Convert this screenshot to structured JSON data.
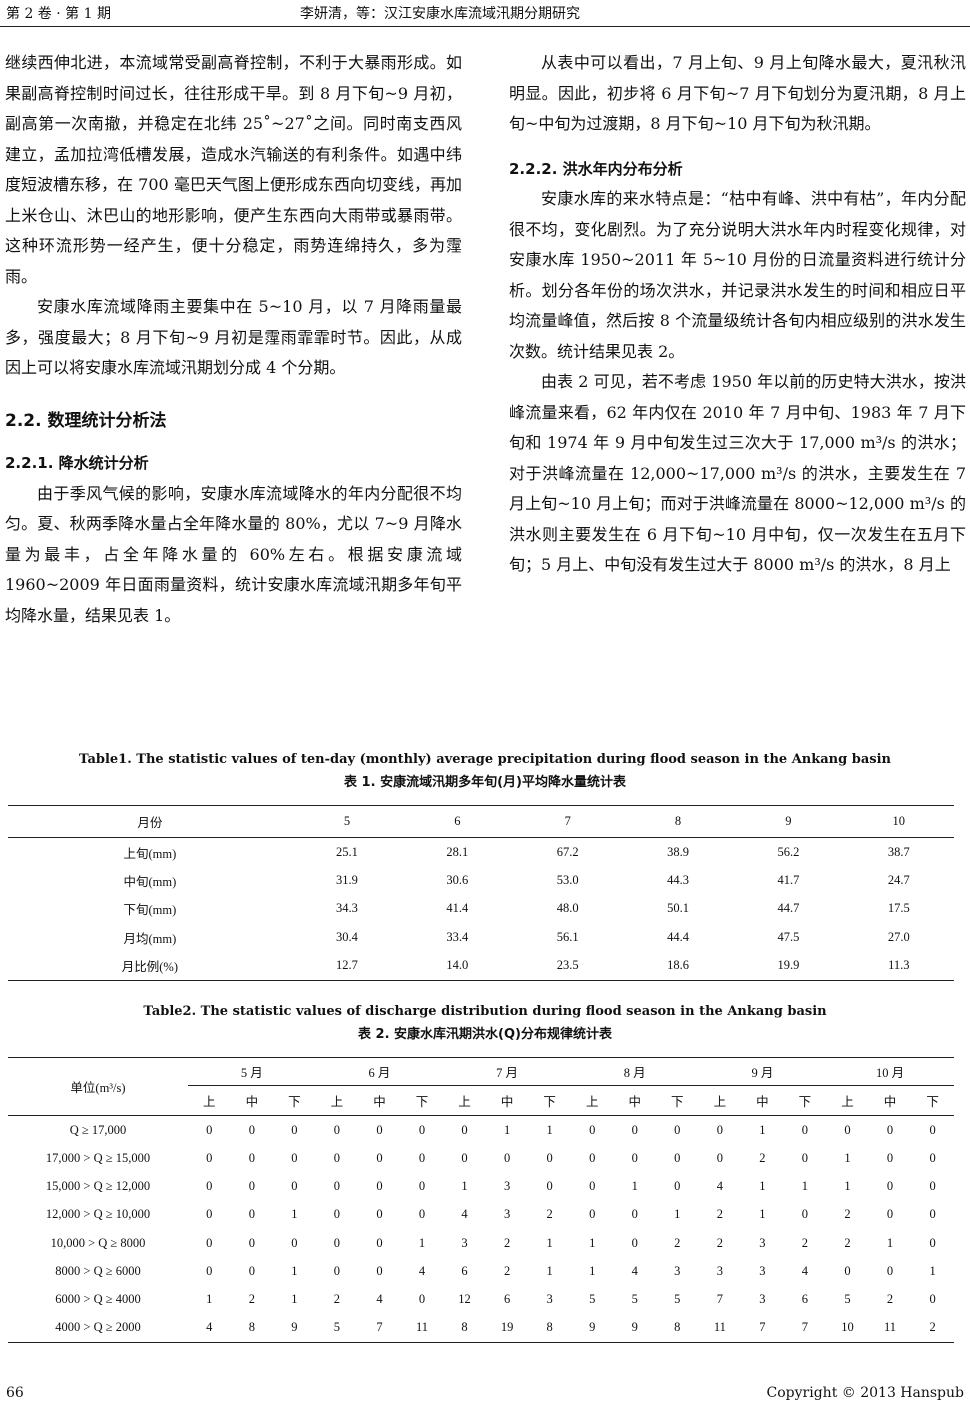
{
  "header": {
    "volume": "第 2 卷 · 第 1 期",
    "running_title": "李妍清，等：汉江安康水库流域汛期分期研究"
  },
  "left_column": {
    "p1": "继续西伸北进，本流域常受副高脊控制，不利于大暴雨形成。如果副高脊控制时间过长，往往形成干旱。到 8 月下旬~9 月初，副高第一次南撤，并稳定在北纬 25˚~27˚之间。同时南支西风建立，孟加拉湾低槽发展，造成水汽输送的有利条件。如遇中纬度短波槽东移，在 700 毫巴天气图上便形成东西向切变线，再加上米仓山、沐巴山的地形影响，便产生东西向大雨带或暴雨带。这种环流形势一经产生，便十分稳定，雨势连绵持久，多为霪雨。",
    "p2": "安康水库流域降雨主要集中在 5~10 月，以 7 月降雨量最多，强度最大；8 月下旬~9 月初是霪雨霏霏时节。因此，从成因上可以将安康水库流域汛期划分成 4 个分期。",
    "h2": "2.2.  数理统计分析法",
    "h3": "2.2.1.  降水统计分析",
    "p3": "由于季风气候的影响，安康水库流域降水的年内分配很不均匀。夏、秋两季降水量占全年降水量的 80%，尤以 7~9 月降水量为最丰，占全年降水量的 60%左右。根据安康流域 1960~2009 年日面雨量资料，统计安康水库流域汛期多年旬平均降水量，结果见表 1。"
  },
  "right_column": {
    "p1": "从表中可以看出，7 月上旬、9 月上旬降水最大，夏汛秋汛明显。因此，初步将 6 月下旬~7 月下旬划分为夏汛期，8 月上旬~中旬为过渡期，8 月下旬~10 月下旬为秋汛期。",
    "h3": "2.2.2.  洪水年内分布分析",
    "p2": "安康水库的来水特点是：“枯中有峰、洪中有枯”，年内分配很不均，变化剧烈。为了充分说明大洪水年内时程变化规律，对安康水库 1950~2011 年 5~10 月份的日流量资料进行统计分析。划分各年份的场次洪水，并记录洪水发生的时间和相应日平均流量峰值，然后按 8 个流量级统计各旬内相应级别的洪水发生次数。统计结果见表 2。",
    "p3": "由表 2 可见，若不考虑 1950 年以前的历史特大洪水，按洪峰流量来看，62 年内仅在 2010 年 7 月中旬、1983 年 7 月下旬和 1974 年 9 月中旬发生过三次大于 17,000 m³/s 的洪水；对于洪峰流量在 12,000~17,000 m³/s 的洪水，主要发生在 7 月上旬~10 月上旬；而对于洪峰流量在 8000~12,000 m³/s 的洪水则主要发生在 6 月下旬~10 月中旬，仅一次发生在五月下旬；5 月上、中旬没有发生过大于 8000 m³/s 的洪水，8 月上"
  },
  "table1": {
    "caption_en": "Table1. The statistic values of ten-day (monthly) average precipitation during flood season in the Ankang basin",
    "caption_cn": "表 1.  安康流域汛期多年旬(月)平均降水量统计表",
    "headers": [
      "月份",
      "5",
      "6",
      "7",
      "8",
      "9",
      "10"
    ],
    "rows": [
      [
        "上旬(mm)",
        "25.1",
        "28.1",
        "67.2",
        "38.9",
        "56.2",
        "38.7"
      ],
      [
        "中旬(mm)",
        "31.9",
        "30.6",
        "53.0",
        "44.3",
        "41.7",
        "24.7"
      ],
      [
        "下旬(mm)",
        "34.3",
        "41.4",
        "48.0",
        "50.1",
        "44.7",
        "17.5"
      ],
      [
        "月均(mm)",
        "30.4",
        "33.4",
        "56.1",
        "44.4",
        "47.5",
        "27.0"
      ],
      [
        "月比例(%)",
        "12.7",
        "14.0",
        "23.5",
        "18.6",
        "19.9",
        "11.3"
      ]
    ]
  },
  "table2": {
    "caption_en": "Table2. The statistic values of discharge distribution during flood season in the Ankang basin",
    "caption_cn": "表 2.  安康水库汛期洪水(Q)分布规律统计表",
    "unit": "单位(m³/s)",
    "months": [
      "5 月",
      "6 月",
      "7 月",
      "8 月",
      "9 月",
      "10 月"
    ],
    "subheaders": [
      "上",
      "中",
      "下"
    ],
    "rows": [
      {
        "label": "Q ≥ 17,000",
        "values": [
          "0",
          "0",
          "0",
          "0",
          "0",
          "0",
          "0",
          "1",
          "1",
          "0",
          "0",
          "0",
          "0",
          "1",
          "0",
          "0",
          "0",
          "0"
        ]
      },
      {
        "label": "17,000 > Q ≥ 15,000",
        "values": [
          "0",
          "0",
          "0",
          "0",
          "0",
          "0",
          "0",
          "0",
          "0",
          "0",
          "0",
          "0",
          "0",
          "2",
          "0",
          "1",
          "0",
          "0"
        ]
      },
      {
        "label": "15,000 > Q ≥ 12,000",
        "values": [
          "0",
          "0",
          "0",
          "0",
          "0",
          "0",
          "1",
          "3",
          "0",
          "0",
          "1",
          "0",
          "4",
          "1",
          "1",
          "1",
          "0",
          "0"
        ]
      },
      {
        "label": "12,000 > Q ≥ 10,000",
        "values": [
          "0",
          "0",
          "1",
          "0",
          "0",
          "0",
          "4",
          "3",
          "2",
          "0",
          "0",
          "1",
          "2",
          "1",
          "0",
          "2",
          "0",
          "0"
        ]
      },
      {
        "label": "10,000 > Q ≥ 8000",
        "values": [
          "0",
          "0",
          "0",
          "0",
          "0",
          "1",
          "3",
          "2",
          "1",
          "1",
          "0",
          "2",
          "2",
          "3",
          "2",
          "2",
          "1",
          "0"
        ]
      },
      {
        "label": "8000 > Q ≥ 6000",
        "values": [
          "0",
          "0",
          "1",
          "0",
          "0",
          "4",
          "6",
          "2",
          "1",
          "1",
          "4",
          "3",
          "3",
          "3",
          "4",
          "0",
          "0",
          "1"
        ]
      },
      {
        "label": "6000 > Q ≥ 4000",
        "values": [
          "1",
          "2",
          "1",
          "2",
          "4",
          "0",
          "12",
          "6",
          "3",
          "5",
          "5",
          "5",
          "7",
          "3",
          "6",
          "5",
          "2",
          "0"
        ]
      },
      {
        "label": "4000 > Q ≥ 2000",
        "values": [
          "4",
          "8",
          "9",
          "5",
          "7",
          "11",
          "8",
          "19",
          "8",
          "9",
          "9",
          "8",
          "11",
          "7",
          "7",
          "10",
          "11",
          "2"
        ]
      }
    ]
  },
  "footer": {
    "page_number": "66",
    "copyright": "Copyright © 2013 Hanspub"
  }
}
